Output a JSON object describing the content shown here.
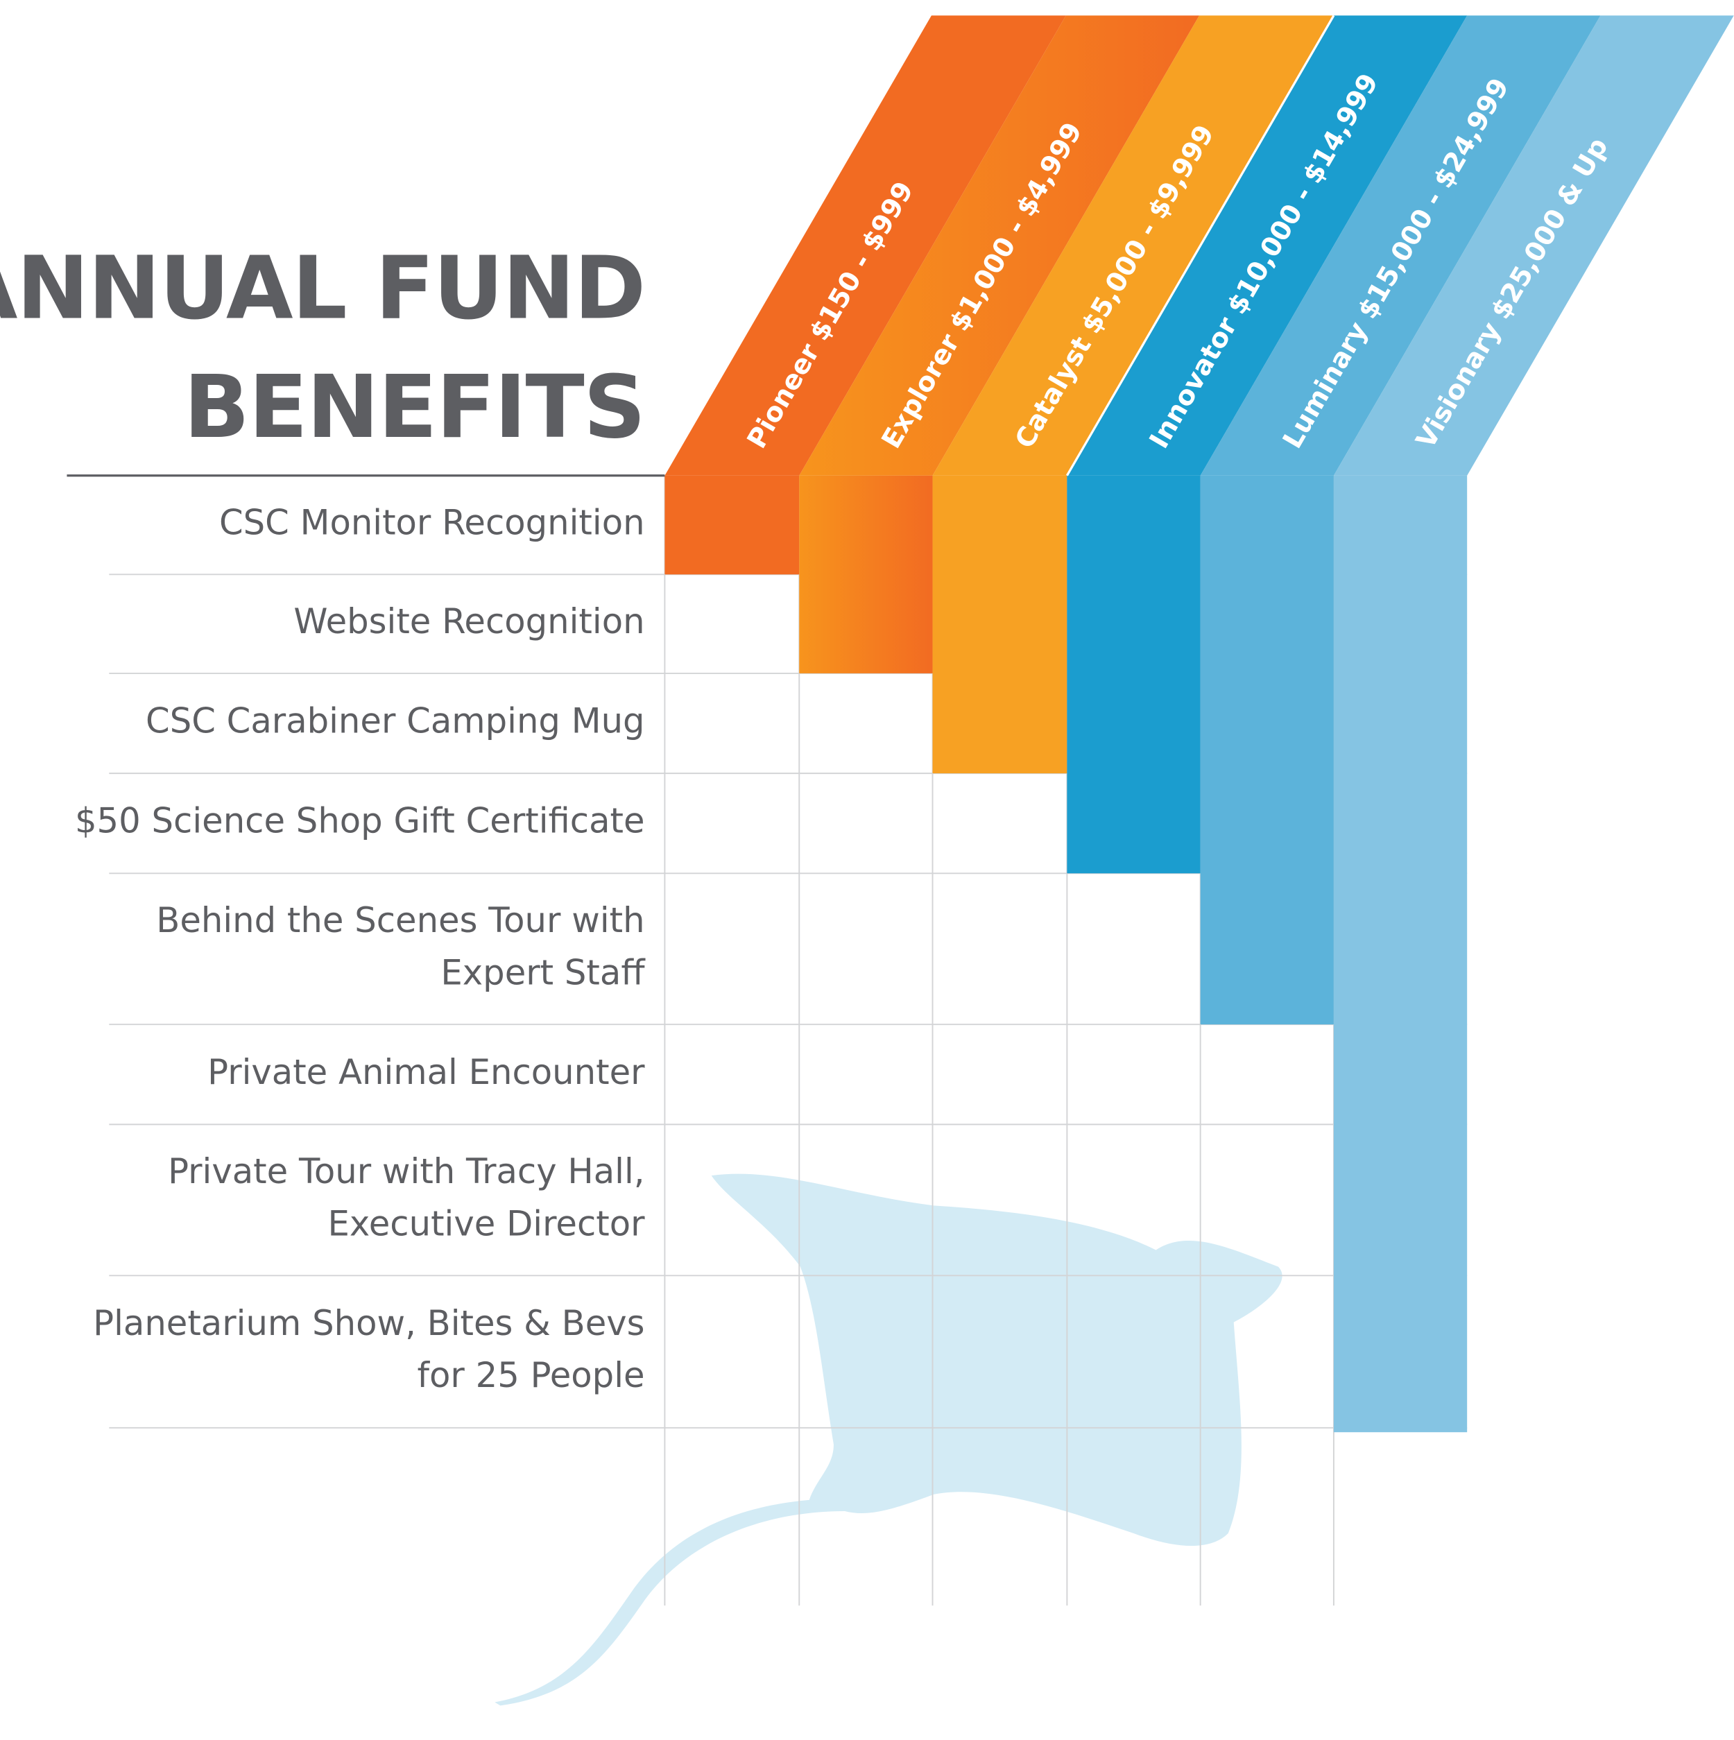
{
  "header": {
    "title_lines": [
      "ANNUAL FUND",
      "BENEFITS"
    ]
  },
  "tiers": [
    "Pioneer $150 - $999",
    "Explorer $1,000 - $4,999",
    "Catalyst $5,000 - $9,999",
    "Innovator $10,000 - $14,999",
    "Luminary $15,000 - $24,999",
    "Visionary $25,000 & Up"
  ],
  "benefits": [
    {
      "lines": [
        "CSC Monitor Recognition"
      ]
    },
    {
      "lines": [
        "Website Recognition"
      ]
    },
    {
      "lines": [
        "CSC Carabiner Camping Mug"
      ]
    },
    {
      "lines": [
        "$50 Science Shop Gift Certificate"
      ]
    },
    {
      "lines": [
        "Behind the Scenes Tour with",
        "Expert Staff"
      ]
    },
    {
      "lines": [
        "Private Animal Encounter"
      ]
    },
    {
      "lines": [
        "Private Tour with Tracy Hall,",
        "Executive Director"
      ]
    },
    {
      "lines": [
        "Planetarium Show, Bites & Bevs",
        "for 25 People"
      ]
    }
  ]
}
